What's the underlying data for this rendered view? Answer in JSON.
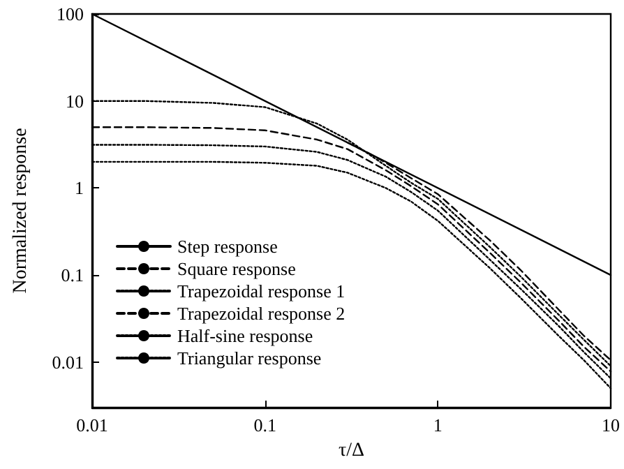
{
  "chart_data": {
    "type": "line",
    "xlabel": "τ/Δ",
    "ylabel": "Normalized response",
    "log": "xy",
    "xlim": [
      0.01,
      10
    ],
    "ylim": [
      0.003,
      100
    ],
    "xticks": [
      0.01,
      0.1,
      1,
      10
    ],
    "yticks": [
      0.01,
      0.1,
      1,
      10,
      100
    ],
    "legend": "bottom left",
    "grid": false,
    "marker": "none",
    "series": [
      {
        "name": "Step response",
        "color": "#000000",
        "line_style": "solid",
        "x": [
          0.01,
          10
        ],
        "values": [
          100,
          0.1
        ]
      },
      {
        "name": "Square response",
        "color": "#000000",
        "line_style": "dashed",
        "x": [
          0.3,
          0.4,
          0.5,
          0.7,
          1,
          2,
          3,
          5,
          7,
          10
        ],
        "values": [
          3.33,
          2.5,
          1.95,
          1.3,
          0.85,
          0.25,
          0.115,
          0.04,
          0.02,
          0.0105
        ]
      },
      {
        "name": "Trapezoidal response 1",
        "color": "#000000",
        "line_style": "dotted",
        "x": [
          0.01,
          0.02,
          0.05,
          0.1,
          0.2,
          0.3,
          0.5,
          0.7,
          1,
          2,
          3,
          5,
          7,
          10
        ],
        "values": [
          10,
          10,
          9.5,
          8.5,
          5.5,
          3.6,
          1.8,
          1.15,
          0.75,
          0.21,
          0.097,
          0.035,
          0.018,
          0.009
        ]
      },
      {
        "name": "Trapezoidal response 2",
        "color": "#000000",
        "line_style": "dashed",
        "x": [
          0.01,
          0.02,
          0.05,
          0.1,
          0.2,
          0.3,
          0.5,
          0.7,
          1,
          2,
          3,
          5,
          7,
          10
        ],
        "values": [
          5,
          5,
          4.9,
          4.6,
          3.6,
          2.8,
          1.6,
          1.05,
          0.65,
          0.18,
          0.083,
          0.03,
          0.015,
          0.0078
        ]
      },
      {
        "name": "Half-sine response",
        "color": "#000000",
        "line_style": "dotted",
        "x": [
          0.01,
          0.02,
          0.05,
          0.1,
          0.2,
          0.3,
          0.5,
          0.7,
          1,
          2,
          3,
          5,
          7,
          10
        ],
        "values": [
          3.14,
          3.14,
          3.1,
          3.0,
          2.6,
          2.1,
          1.35,
          0.9,
          0.55,
          0.15,
          0.07,
          0.026,
          0.013,
          0.0065
        ]
      },
      {
        "name": "Triangular response",
        "color": "#000000",
        "line_style": "dotted",
        "x": [
          0.01,
          0.02,
          0.05,
          0.1,
          0.2,
          0.3,
          0.5,
          0.7,
          1,
          2,
          3,
          5,
          7,
          10
        ],
        "values": [
          2,
          2,
          2,
          1.95,
          1.8,
          1.5,
          1.0,
          0.7,
          0.42,
          0.12,
          0.055,
          0.02,
          0.0105,
          0.005
        ]
      }
    ]
  }
}
